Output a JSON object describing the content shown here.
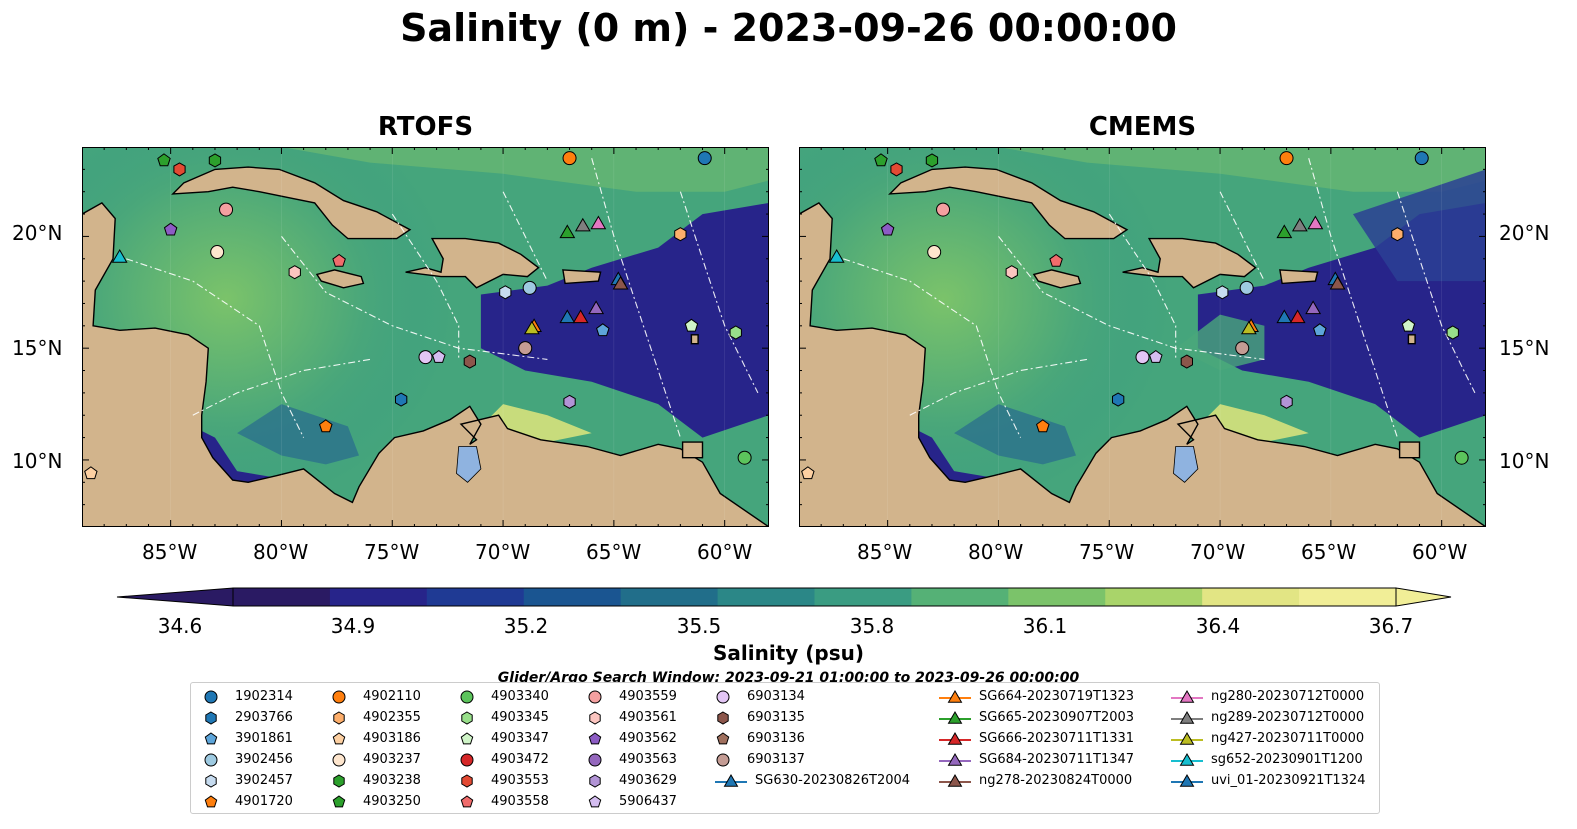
{
  "title": "Salinity (0 m) - 2023-09-26 00:00:00",
  "panels": [
    {
      "title": "RTOFS"
    },
    {
      "title": "CMEMS"
    }
  ],
  "axes": {
    "lon_ticks": [
      "85°W",
      "80°W",
      "75°W",
      "70°W",
      "65°W",
      "60°W"
    ],
    "lat_ticks": [
      "20°N",
      "15°N",
      "10°N"
    ]
  },
  "colorbar": {
    "ticks": [
      "34.6",
      "34.9",
      "35.2",
      "35.5",
      "35.8",
      "36.1",
      "36.4",
      "36.7"
    ],
    "label": "Salinity (psu)",
    "extend": "both",
    "cmap": [
      "#2a1a63",
      "#27248a",
      "#1f3a94",
      "#1a5591",
      "#216e8a",
      "#2b8787",
      "#3a9c82",
      "#55b176",
      "#7bc36a",
      "#a9d46a",
      "#e2e584",
      "#f1ee97"
    ]
  },
  "search_window": "Glider/Argo Search Window: 2023-09-21 01:00:00 to 2023-09-26 00:00:00",
  "legend": {
    "argo": [
      {
        "id": "1902314",
        "color": "#1f77b4",
        "marker": "circle"
      },
      {
        "id": "2903766",
        "color": "#1f77b4",
        "marker": "hexagon"
      },
      {
        "id": "3901861",
        "color": "#5da5da",
        "marker": "pentagon"
      },
      {
        "id": "3902456",
        "color": "#9ecae1",
        "marker": "circle"
      },
      {
        "id": "3902457",
        "color": "#c6dbef",
        "marker": "hexagon"
      },
      {
        "id": "4901720",
        "color": "#ff7f0e",
        "marker": "pentagon"
      },
      {
        "id": "4902110",
        "color": "#ff7f0e",
        "marker": "circle"
      },
      {
        "id": "4902355",
        "color": "#fdae6b",
        "marker": "hexagon"
      },
      {
        "id": "4903186",
        "color": "#fdd0a2",
        "marker": "pentagon"
      },
      {
        "id": "4903237",
        "color": "#fee6ce",
        "marker": "circle"
      },
      {
        "id": "4903238",
        "color": "#2ca02c",
        "marker": "hexagon"
      },
      {
        "id": "4903250",
        "color": "#2ca02c",
        "marker": "pentagon"
      },
      {
        "id": "4903340",
        "color": "#5cc45c",
        "marker": "circle"
      },
      {
        "id": "4903345",
        "color": "#98df8a",
        "marker": "hexagon"
      },
      {
        "id": "4903347",
        "color": "#d0f5c8",
        "marker": "pentagon"
      },
      {
        "id": "4903472",
        "color": "#d62728",
        "marker": "circle"
      },
      {
        "id": "4903553",
        "color": "#e34a33",
        "marker": "hexagon"
      },
      {
        "id": "4903558",
        "color": "#f06c6c",
        "marker": "pentagon"
      },
      {
        "id": "4903559",
        "color": "#f4a0a0",
        "marker": "circle"
      },
      {
        "id": "4903561",
        "color": "#fcc5c0",
        "marker": "hexagon"
      },
      {
        "id": "4903562",
        "color": "#8c5cc4",
        "marker": "pentagon"
      },
      {
        "id": "4903563",
        "color": "#9467bd",
        "marker": "circle"
      },
      {
        "id": "4903629",
        "color": "#b294d6",
        "marker": "hexagon"
      },
      {
        "id": "5906437",
        "color": "#d4bdf0",
        "marker": "pentagon"
      },
      {
        "id": "6903134",
        "color": "#e3c6f5",
        "marker": "circle"
      },
      {
        "id": "6903135",
        "color": "#8c564b",
        "marker": "hexagon"
      },
      {
        "id": "6903136",
        "color": "#a0705e",
        "marker": "pentagon"
      },
      {
        "id": "6903137",
        "color": "#c49c94",
        "marker": "circle"
      }
    ],
    "gliders": [
      {
        "id": "SG630-20230826T2004",
        "color": "#1f77b4"
      },
      {
        "id": "SG664-20230719T1323",
        "color": "#ff7f0e"
      },
      {
        "id": "SG665-20230907T2003",
        "color": "#2ca02c"
      },
      {
        "id": "SG666-20230711T1331",
        "color": "#d62728"
      },
      {
        "id": "SG684-20230711T1347",
        "color": "#9467bd"
      },
      {
        "id": "ng278-20230824T0000",
        "color": "#8c564b"
      },
      {
        "id": "ng280-20230712T0000",
        "color": "#e377c2"
      },
      {
        "id": "ng289-20230712T0000",
        "color": "#7f7f7f"
      },
      {
        "id": "ng427-20230711T0000",
        "color": "#bcbd22"
      },
      {
        "id": "sg652-20230901T1200",
        "color": "#17becf"
      },
      {
        "id": "uvi_01-20230921T1324",
        "color": "#1f77b4"
      }
    ]
  },
  "map": {
    "lon_range": [
      -89,
      -58
    ],
    "lat_range": [
      7,
      24
    ],
    "colors": {
      "land": "#d2b48c",
      "lake": "#8fb3e0",
      "coast": "#000000",
      "ocean_low": "#27248a",
      "ocean_mid": "#2e8c86",
      "ocean_high": "#d6e27c"
    }
  },
  "chart_data": {
    "type": "scatter",
    "title": "Salinity (0 m) - 2023-09-26 00:00:00",
    "subplots": [
      "RTOFS",
      "CMEMS"
    ],
    "xlabel": "",
    "ylabel": "",
    "colorbar_label": "Salinity (psu)",
    "colorbar_range": [
      34.6,
      36.7
    ],
    "argo_points": [
      {
        "id": "1902314",
        "lon": -60.9,
        "lat": 23.5
      },
      {
        "id": "3902456",
        "lon": -68.8,
        "lat": 17.7
      },
      {
        "id": "3902457",
        "lon": -69.9,
        "lat": 17.5
      },
      {
        "id": "3901861",
        "lon": -65.5,
        "lat": 15.8
      },
      {
        "id": "2903766",
        "lon": -74.6,
        "lat": 12.7
      },
      {
        "id": "4901720",
        "lon": -78.0,
        "lat": 11.5
      },
      {
        "id": "4902110",
        "lon": -67.0,
        "lat": 23.5
      },
      {
        "id": "4902355",
        "lon": -62.0,
        "lat": 20.1
      },
      {
        "id": "4903186",
        "lon": -88.6,
        "lat": 9.4
      },
      {
        "id": "4903237",
        "lon": -82.9,
        "lat": 19.3
      },
      {
        "id": "4903238",
        "lon": -83.0,
        "lat": 23.4
      },
      {
        "id": "4903250",
        "lon": -85.3,
        "lat": 23.4
      },
      {
        "id": "4903340",
        "lon": -59.1,
        "lat": 10.1
      },
      {
        "id": "4903345",
        "lon": -59.5,
        "lat": 15.7
      },
      {
        "id": "4903347",
        "lon": -61.5,
        "lat": 16.0
      },
      {
        "id": "4903553",
        "lon": -84.6,
        "lat": 23.0
      },
      {
        "id": "4903558",
        "lon": -77.4,
        "lat": 18.9
      },
      {
        "id": "4903559",
        "lon": -82.5,
        "lat": 21.2
      },
      {
        "id": "4903561",
        "lon": -79.4,
        "lat": 18.4
      },
      {
        "id": "4903562",
        "lon": -85.0,
        "lat": 20.3
      },
      {
        "id": "4903629",
        "lon": -67.0,
        "lat": 12.6
      },
      {
        "id": "5906437",
        "lon": -72.9,
        "lat": 14.6
      },
      {
        "id": "6903134",
        "lon": -73.5,
        "lat": 14.6
      },
      {
        "id": "6903135",
        "lon": -71.5,
        "lat": 14.4
      },
      {
        "id": "6903137",
        "lon": -69.0,
        "lat": 15.0
      }
    ],
    "glider_points": [
      {
        "id": "SG665-20230907T2003",
        "lon": -67.1,
        "lat": 20.2
      },
      {
        "id": "ng289-20230712T0000",
        "lon": -66.4,
        "lat": 20.5
      },
      {
        "id": "ng280-20230712T0000",
        "lon": -65.7,
        "lat": 20.6
      },
      {
        "id": "sg652-20230901T1200",
        "lon": -87.3,
        "lat": 19.1
      },
      {
        "id": "uvi_01-20230921T1324",
        "lon": -64.8,
        "lat": 18.1
      },
      {
        "id": "ng278-20230824T0000",
        "lon": -64.7,
        "lat": 17.9
      },
      {
        "id": "SG684-20230711T1347",
        "lon": -65.8,
        "lat": 16.8
      },
      {
        "id": "SG630-20230826T2004",
        "lon": -67.1,
        "lat": 16.4
      },
      {
        "id": "SG666-20230711T1331",
        "lon": -66.5,
        "lat": 16.4
      },
      {
        "id": "SG664-20230719T1323",
        "lon": -68.6,
        "lat": 16.0
      },
      {
        "id": "ng427-20230711T0000",
        "lon": -68.7,
        "lat": 15.9
      }
    ]
  }
}
